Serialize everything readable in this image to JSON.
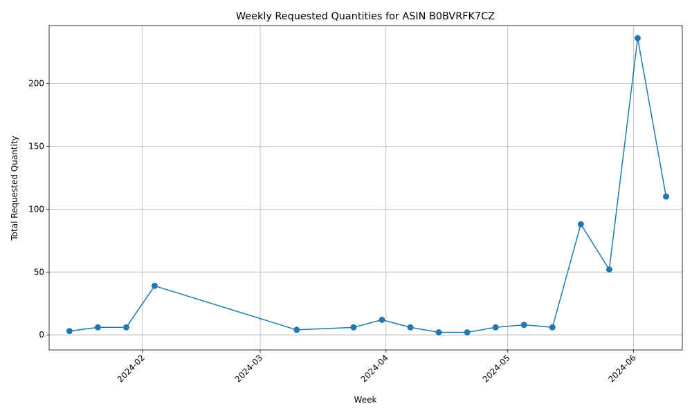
{
  "chart_data": {
    "type": "line",
    "title": "Weekly Requested Quantities for ASIN B0BVRFK7CZ",
    "xlabel": "Week",
    "ylabel": "Total Requested Quantity",
    "x_scale": "date",
    "xlim": [
      "2024-01-09",
      "2024-06-13"
    ],
    "ylim": [
      -12,
      246
    ],
    "x_ticks": [
      "2024-02-01",
      "2024-03-01",
      "2024-04-01",
      "2024-05-01",
      "2024-06-01"
    ],
    "x_tick_labels": [
      "2024-02",
      "2024-03",
      "2024-04",
      "2024-05",
      "2024-06"
    ],
    "y_ticks": [
      0,
      50,
      100,
      150,
      200
    ],
    "grid": true,
    "line_color": "#1f77b4",
    "marker": "circle",
    "series": [
      {
        "x": [
          "2024-01-14",
          "2024-01-21",
          "2024-01-28",
          "2024-02-04",
          "2024-03-10",
          "2024-03-24",
          "2024-03-31",
          "2024-04-07",
          "2024-04-14",
          "2024-04-21",
          "2024-04-28",
          "2024-05-05",
          "2024-05-12",
          "2024-05-19",
          "2024-05-26",
          "2024-06-02",
          "2024-06-09"
        ],
        "y": [
          3,
          6,
          6,
          39,
          4,
          6,
          12,
          6,
          2,
          2,
          6,
          8,
          6,
          88,
          52,
          236,
          110
        ]
      }
    ]
  }
}
